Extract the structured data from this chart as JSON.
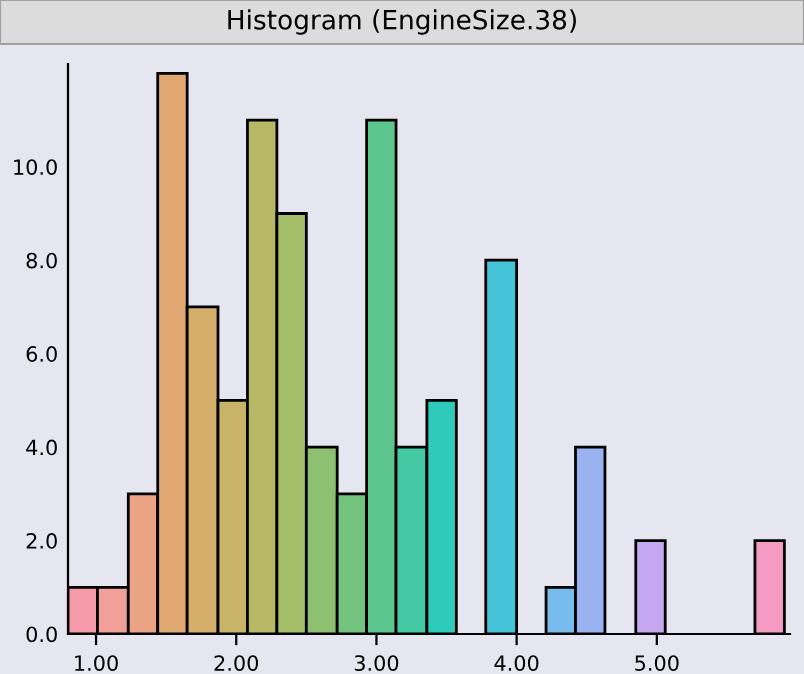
{
  "chart_data": {
    "type": "histogram",
    "title": "Histogram (EngineSize.38)",
    "bins": [
      0.8,
      1.01,
      1.23,
      1.44,
      1.65,
      1.87,
      2.08,
      2.29,
      2.5,
      2.72,
      2.93,
      3.14,
      3.36,
      3.57,
      3.78,
      4.0,
      4.21,
      4.42,
      4.63,
      4.85,
      5.06,
      5.7,
      5.91
    ],
    "values": [
      1,
      1,
      3,
      12,
      7,
      5,
      11,
      9,
      4,
      3,
      11,
      4,
      5,
      0,
      8,
      0,
      1,
      4,
      0,
      2,
      0,
      2
    ],
    "colors": [
      "#f49aa8",
      "#f0a098",
      "#eba386",
      "#e2a873",
      "#d6ae6c",
      "#c7b468",
      "#b6b865",
      "#a5be6a",
      "#8ec072",
      "#72c47e",
      "#5cc68e",
      "#45c9a4",
      "#2ecbbb",
      "#2bc8c8",
      "#44c4d6",
      "#5abde0",
      "#78bced",
      "#9ab3f0",
      "#b0a9f0",
      "#c5a8ef",
      "#d8a0e0",
      "#f59ac2"
    ],
    "xlim": [
      0.8,
      5.95
    ],
    "ylim": [
      0,
      12.2
    ],
    "xticks": [
      {
        "value": 1,
        "label": "1.00"
      },
      {
        "value": 2,
        "label": "2.00"
      },
      {
        "value": 3,
        "label": "3.00"
      },
      {
        "value": 4,
        "label": "4.00"
      },
      {
        "value": 5,
        "label": "5.00"
      }
    ],
    "yticks": [
      {
        "value": 0,
        "label": "0.0"
      },
      {
        "value": 2,
        "label": "2.0"
      },
      {
        "value": 4,
        "label": "4.0"
      },
      {
        "value": 6,
        "label": "6.0"
      },
      {
        "value": 8,
        "label": "8.0"
      },
      {
        "value": 10,
        "label": "10.0"
      }
    ],
    "grid": false,
    "legend": false
  }
}
